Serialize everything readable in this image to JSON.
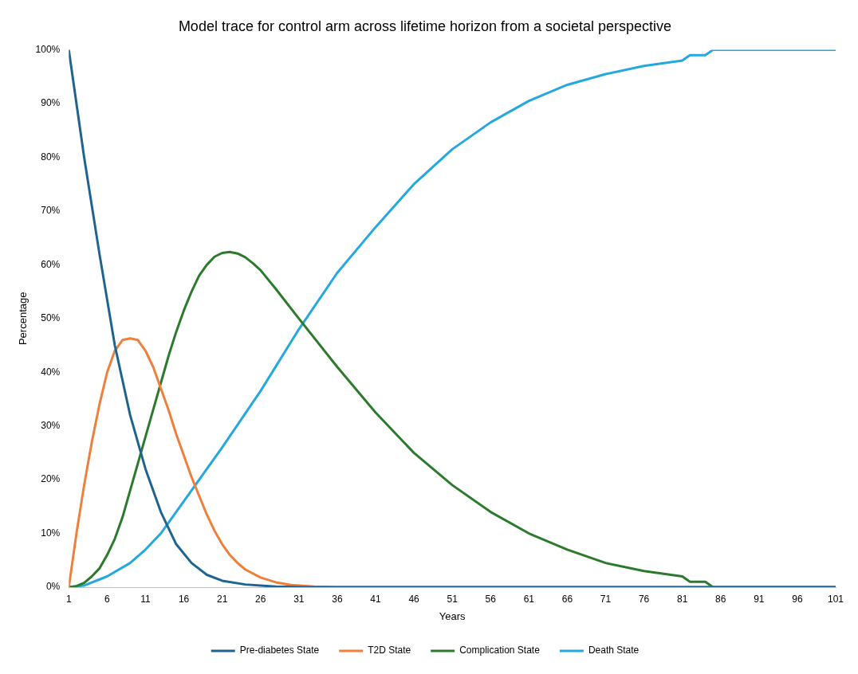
{
  "chart_data": {
    "type": "line",
    "title": "Model trace for control arm across lifetime horizon from a societal perspective",
    "xlabel": "Years",
    "ylabel": "Percentage",
    "xlim": [
      1,
      101
    ],
    "xticks": [
      1,
      6,
      11,
      16,
      21,
      26,
      31,
      36,
      41,
      46,
      51,
      56,
      61,
      66,
      71,
      76,
      81,
      86,
      91,
      96,
      101
    ],
    "ylim": [
      0,
      100
    ],
    "yticks": [
      {
        "value": 0,
        "label": "0%"
      },
      {
        "value": 10,
        "label": "10%"
      },
      {
        "value": 20,
        "label": "20%"
      },
      {
        "value": 30,
        "label": "30%"
      },
      {
        "value": 40,
        "label": "40%"
      },
      {
        "value": 50,
        "label": "50%"
      },
      {
        "value": 60,
        "label": "60%"
      },
      {
        "value": 70,
        "label": "70%"
      },
      {
        "value": 80,
        "label": "80%"
      },
      {
        "value": 90,
        "label": "90%"
      },
      {
        "value": 100,
        "label": "100%"
      }
    ],
    "grid": false,
    "legend": "bottom",
    "marker": "none",
    "line_style": "solid",
    "series": [
      {
        "name": "Pre-diabetes State",
        "color": "#1f6391",
        "x": [
          1,
          3,
          5,
          7,
          9,
          11,
          13,
          15,
          17,
          19,
          21,
          24,
          28,
          32,
          101
        ],
        "values": [
          100,
          80,
          62,
          45,
          32,
          22,
          14,
          8,
          4.5,
          2.3,
          1.2,
          0.5,
          0.1,
          0,
          0
        ]
      },
      {
        "name": "T2D State",
        "color": "#f07f3c",
        "x": [
          1,
          2,
          3,
          4,
          5,
          6,
          7,
          8,
          9,
          10,
          11,
          12,
          13,
          14,
          15,
          16,
          17,
          18,
          19,
          20,
          21,
          22,
          23,
          24,
          26,
          28,
          30,
          33,
          36,
          85
        ],
        "values": [
          0,
          10,
          19,
          27,
          34,
          40,
          44,
          46,
          46.3,
          46,
          44,
          41,
          37,
          33,
          28.5,
          24.5,
          20.5,
          17,
          13.5,
          10.5,
          8,
          6,
          4.5,
          3.3,
          1.8,
          0.9,
          0.4,
          0.1,
          0,
          0
        ]
      },
      {
        "name": "Complication State",
        "color": "#2c7a2c",
        "x": [
          1,
          2,
          3,
          4,
          5,
          6,
          7,
          8,
          9,
          10,
          11,
          12,
          13,
          14,
          15,
          16,
          17,
          18,
          19,
          20,
          21,
          22,
          23,
          24,
          25,
          26,
          28,
          31,
          36,
          41,
          46,
          51,
          56,
          61,
          66,
          71,
          76,
          81,
          82,
          84,
          85,
          101
        ],
        "values": [
          0,
          0.2,
          0.8,
          2,
          3.5,
          6,
          9,
          13,
          18,
          23,
          28,
          33,
          38,
          43,
          47.5,
          51.5,
          55,
          58,
          60,
          61.5,
          62.2,
          62.4,
          62.1,
          61.4,
          60.3,
          59,
          55.5,
          50,
          41,
          32.5,
          25,
          19,
          14,
          10,
          7,
          4.5,
          3,
          2,
          1,
          1,
          0,
          0
        ]
      },
      {
        "name": "Death State",
        "color": "#25a8e0",
        "x": [
          1,
          3,
          6,
          9,
          11,
          13,
          16,
          21,
          26,
          31,
          36,
          41,
          46,
          51,
          56,
          61,
          66,
          71,
          76,
          81,
          82,
          84,
          85,
          101
        ],
        "values": [
          0,
          0.3,
          2,
          4.5,
          7,
          10,
          16,
          26,
          36.5,
          48,
          58.5,
          67,
          75,
          81.5,
          86.5,
          90.5,
          93.5,
          95.5,
          97,
          98,
          99,
          99,
          100,
          100
        ]
      }
    ]
  }
}
